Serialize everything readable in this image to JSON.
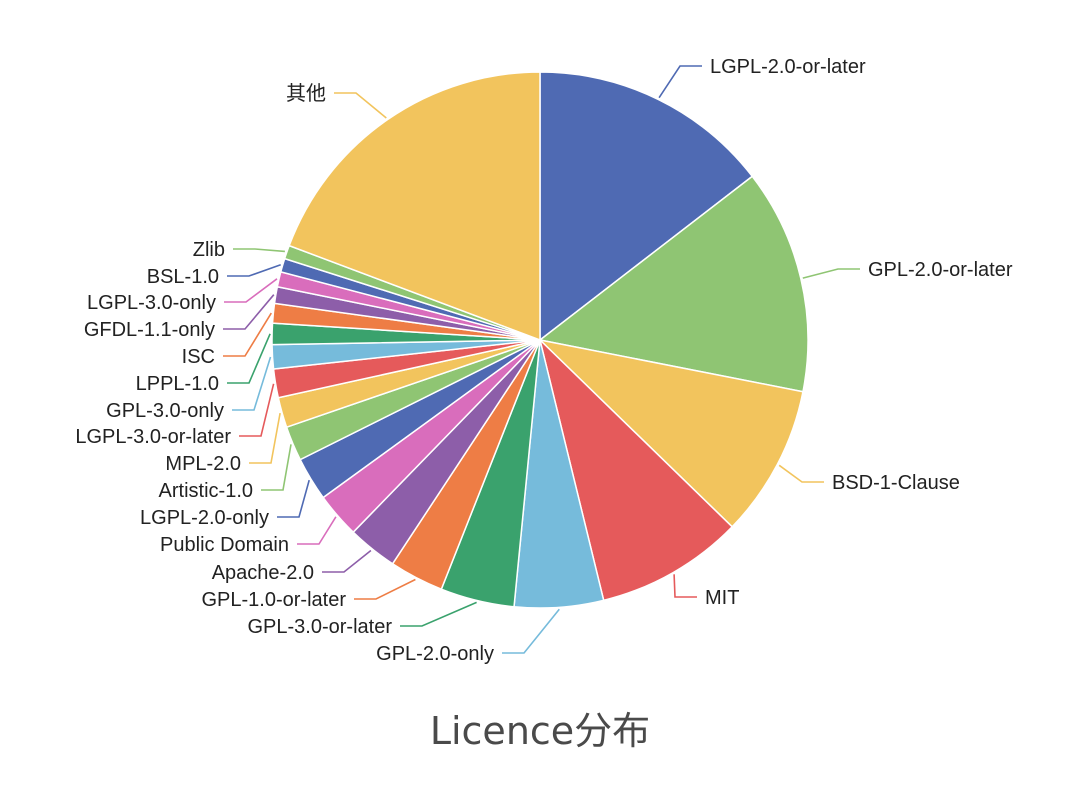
{
  "chart_data": {
    "type": "pie",
    "title": "Licence分布",
    "start_angle_deg": 0,
    "direction": "clockwise",
    "slices": [
      {
        "label": "LGPL-2.0-or-later",
        "value": 16.0,
        "color": "#4f6ab3"
      },
      {
        "label": "GPL-2.0-or-later",
        "value": 14.9,
        "color": "#8fc573"
      },
      {
        "label": "BSD-1-Clause",
        "value": 10.1,
        "color": "#f2c45d"
      },
      {
        "label": "MIT",
        "value": 9.8,
        "color": "#e55a5b"
      },
      {
        "label": "GPL-2.0-only",
        "value": 5.9,
        "color": "#76bbdb"
      },
      {
        "label": "GPL-3.0-or-later",
        "value": 4.9,
        "color": "#3aa26d"
      },
      {
        "label": "GPL-1.0-or-later",
        "value": 3.6,
        "color": "#ee7d45"
      },
      {
        "label": "Apache-2.0",
        "value": 3.3,
        "color": "#8d5ea9"
      },
      {
        "label": "Public Domain",
        "value": 3.0,
        "color": "#d96dbc"
      },
      {
        "label": "LGPL-2.0-only",
        "value": 2.9,
        "color": "#4f6ab3"
      },
      {
        "label": "Artistic-1.0",
        "value": 2.3,
        "color": "#8fc573"
      },
      {
        "label": "MPL-2.0",
        "value": 2.0,
        "color": "#f2c45d"
      },
      {
        "label": "LGPL-3.0-or-later",
        "value": 1.9,
        "color": "#e55a5b"
      },
      {
        "label": "GPL-3.0-only",
        "value": 1.6,
        "color": "#76bbdb"
      },
      {
        "label": "LPPL-1.0",
        "value": 1.4,
        "color": "#3aa26d"
      },
      {
        "label": "ISC",
        "value": 1.3,
        "color": "#ee7d45"
      },
      {
        "label": "GFDL-1.1-only",
        "value": 1.1,
        "color": "#8d5ea9"
      },
      {
        "label": "LGPL-3.0-only",
        "value": 1.0,
        "color": "#d96dbc"
      },
      {
        "label": "BSL-1.0",
        "value": 0.9,
        "color": "#4f6ab3"
      },
      {
        "label": "Zlib",
        "value": 0.9,
        "color": "#8fc573"
      },
      {
        "label": "其他",
        "value": 21.2,
        "color": "#f2c45d"
      }
    ]
  }
}
